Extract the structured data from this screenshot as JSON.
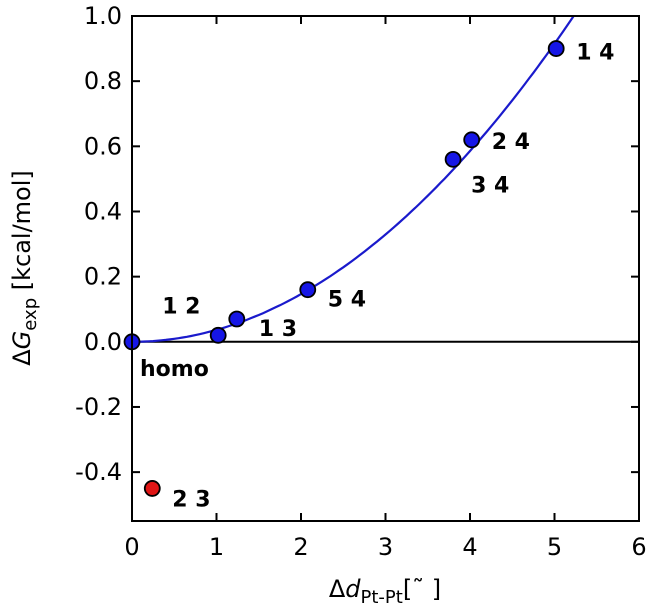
{
  "chart_data": {
    "type": "scatter",
    "title": "",
    "xlabel": {
      "prefix": "Δ",
      "main": "d",
      "sub": "Pt-Pt",
      "suffix": "[˜ ]"
    },
    "ylabel": {
      "prefix": "Δ",
      "main": "G",
      "sub": "exp",
      "suffix": " [kcal/mol]"
    },
    "xlim": [
      0,
      6
    ],
    "ylim": [
      -0.55,
      1.0
    ],
    "x_ticks": [
      0,
      1,
      2,
      3,
      4,
      5,
      6
    ],
    "x_tick_labels": [
      "0",
      "1",
      "2",
      "3",
      "4",
      "5",
      "6"
    ],
    "y_ticks": [
      -0.4,
      -0.2,
      0.0,
      0.2,
      0.4,
      0.6,
      0.8,
      1.0
    ],
    "y_tick_labels": [
      "-0.4",
      "-0.2",
      "0.0",
      "0.2",
      "0.4",
      "0.6",
      "0.8",
      "1.0"
    ],
    "zero_line": true,
    "grid": false,
    "series": [
      {
        "color": "#1616e6",
        "points": [
          {
            "x": 0.0,
            "y": 0.0,
            "label": "homo"
          },
          {
            "x": 1.02,
            "y": 0.02,
            "label": "1 2"
          },
          {
            "x": 1.24,
            "y": 0.07,
            "label": "1 3"
          },
          {
            "x": 2.08,
            "y": 0.16,
            "label": "5 4"
          },
          {
            "x": 3.8,
            "y": 0.56,
            "label": "3 4"
          },
          {
            "x": 4.02,
            "y": 0.62,
            "label": "2 4"
          },
          {
            "x": 5.02,
            "y": 0.9,
            "label": "1 4"
          }
        ]
      },
      {
        "color": "#e01616",
        "points": [
          {
            "x": 0.24,
            "y": -0.45,
            "label": "2 3"
          }
        ]
      }
    ],
    "fit_curve": {
      "type": "quadratic",
      "a": 0.0366,
      "color": "#1a1acc"
    }
  }
}
